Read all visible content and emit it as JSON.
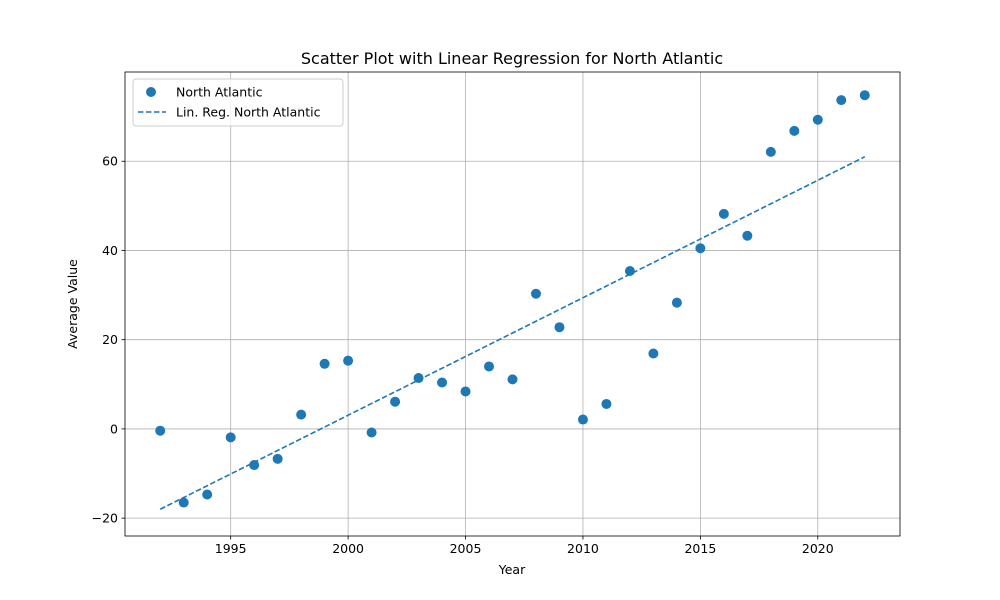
{
  "chart_data": {
    "type": "scatter",
    "title": "Scatter Plot with Linear Regression for North Atlantic",
    "xlabel": "Year",
    "ylabel": "Average Value",
    "xlim": [
      1990.5,
      2023.5
    ],
    "ylim": [
      -24,
      80
    ],
    "xticks": [
      1995,
      2000,
      2005,
      2010,
      2015,
      2020
    ],
    "xtick_labels": [
      "1995",
      "2000",
      "2005",
      "2010",
      "2015",
      "2020"
    ],
    "yticks": [
      -20,
      0,
      20,
      40,
      60
    ],
    "ytick_labels": [
      "−20",
      "0",
      "20",
      "40",
      "60"
    ],
    "grid": true,
    "legend_position": "top-left",
    "colors": {
      "series": "#1f77b4",
      "grid": "#b0b0b0",
      "axes": "#000000"
    },
    "series": [
      {
        "name": "North Atlantic",
        "kind": "scatter",
        "x": [
          1992,
          1993,
          1994,
          1995,
          1996,
          1997,
          1998,
          1999,
          2000,
          2001,
          2002,
          2003,
          2004,
          2005,
          2006,
          2007,
          2008,
          2009,
          2010,
          2011,
          2012,
          2013,
          2014,
          2015,
          2016,
          2017,
          2018,
          2019,
          2020,
          2021,
          2022
        ],
        "y": [
          -0.4,
          -16.5,
          -14.7,
          -1.9,
          -8.1,
          -6.7,
          3.2,
          14.6,
          15.3,
          -0.8,
          6.1,
          11.4,
          10.4,
          8.4,
          14.0,
          11.1,
          30.3,
          22.8,
          2.1,
          5.6,
          35.4,
          16.9,
          28.3,
          40.5,
          48.2,
          43.3,
          62.1,
          66.8,
          69.3,
          73.7,
          74.8
        ]
      },
      {
        "name": "Lin. Reg. North Atlantic",
        "kind": "line",
        "style": "dashed",
        "x": [
          1992,
          2022
        ],
        "y": [
          -18.0,
          61.0
        ]
      }
    ]
  }
}
